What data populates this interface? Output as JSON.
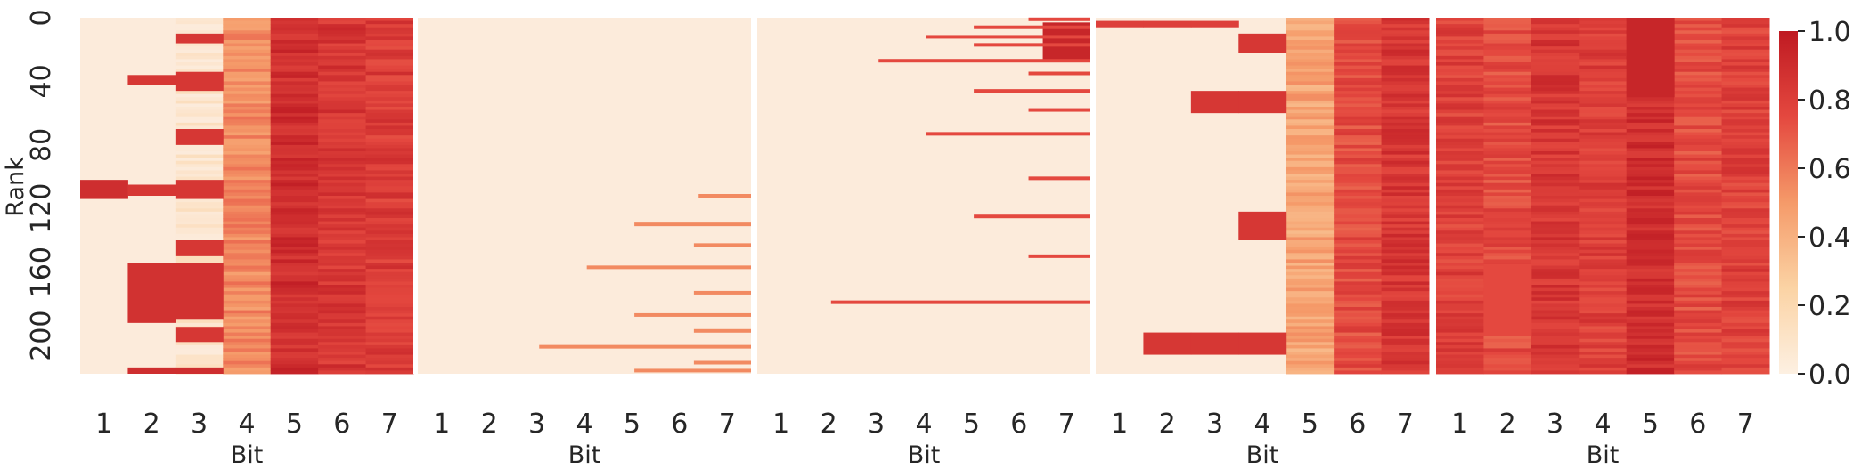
{
  "chart_data": {
    "type": "heatmap",
    "panels": 5,
    "x_categories": [
      "1",
      "2",
      "3",
      "4",
      "5",
      "6",
      "7"
    ],
    "xlabel": "Bit",
    "ylabel": "Rank",
    "y_range": [
      0,
      224
    ],
    "y_ticks": [
      "0",
      "40",
      "80",
      "120",
      "160",
      "200"
    ],
    "colorbar": {
      "range": [
        0.0,
        1.0
      ],
      "ticks": [
        "0.0",
        "0.2",
        "0.4",
        "0.6",
        "0.8",
        "1.0"
      ],
      "colormap": "OrRd",
      "colors": [
        "#fcebdb",
        "#f6b98a",
        "#eb6e4f",
        "#d1353a",
        "#c01d24"
      ]
    },
    "panel_data": [
      {
        "description_bits": "panel 1",
        "column_base": [
          0,
          0,
          0.05,
          0.55,
          0.9,
          0.85,
          0.82
        ],
        "bands": [
          {
            "col": 0,
            "start": 102,
            "end": 114,
            "value": 0.9
          },
          {
            "col": 1,
            "start": 36,
            "end": 42,
            "value": 0.85
          },
          {
            "col": 1,
            "start": 105,
            "end": 112,
            "value": 0.85
          },
          {
            "col": 1,
            "start": 154,
            "end": 192,
            "value": 0.88
          },
          {
            "col": 1,
            "start": 220,
            "end": 224,
            "value": 0.9
          },
          {
            "col": 2,
            "start": 10,
            "end": 16,
            "value": 0.85
          },
          {
            "col": 2,
            "start": 34,
            "end": 46,
            "value": 0.85
          },
          {
            "col": 2,
            "start": 70,
            "end": 80,
            "value": 0.85
          },
          {
            "col": 2,
            "start": 102,
            "end": 114,
            "value": 0.85
          },
          {
            "col": 2,
            "start": 140,
            "end": 150,
            "value": 0.85
          },
          {
            "col": 2,
            "start": 154,
            "end": 190,
            "value": 0.88
          },
          {
            "col": 2,
            "start": 195,
            "end": 204,
            "value": 0.85
          },
          {
            "col": 2,
            "start": 220,
            "end": 224,
            "value": 0.9
          }
        ]
      },
      {
        "description_bits": "panel 2",
        "column_base": [
          0,
          0,
          0,
          0,
          0,
          0,
          0
        ],
        "lines": [
          {
            "row": 112,
            "from_col": 6.4,
            "value": 0.55
          },
          {
            "row": 130,
            "from_col": 5.05,
            "value": 0.55
          },
          {
            "row": 143,
            "from_col": 6.3,
            "value": 0.55
          },
          {
            "row": 157,
            "from_col": 4.05,
            "value": 0.55
          },
          {
            "row": 173,
            "from_col": 6.3,
            "value": 0.55
          },
          {
            "row": 187,
            "from_col": 5.05,
            "value": 0.55
          },
          {
            "row": 197,
            "from_col": 6.3,
            "value": 0.55
          },
          {
            "row": 207,
            "from_col": 3.05,
            "value": 0.55
          },
          {
            "row": 217,
            "from_col": 6.3,
            "value": 0.55
          },
          {
            "row": 222,
            "from_col": 5.05,
            "value": 0.55
          }
        ]
      },
      {
        "description_bits": "panel 3",
        "column_base": [
          0,
          0,
          0,
          0,
          0,
          0,
          0
        ],
        "lines": [
          {
            "row": 1,
            "from_col": 6.2,
            "value": 0.75
          },
          {
            "row": 6,
            "from_col": 5.05,
            "value": 0.75
          },
          {
            "row": 12,
            "from_col": 4.05,
            "value": 0.75
          },
          {
            "row": 17,
            "from_col": 5.05,
            "value": 0.75
          },
          {
            "row": 27,
            "from_col": 3.05,
            "value": 0.75
          },
          {
            "row": 35,
            "from_col": 6.2,
            "value": 0.75
          },
          {
            "row": 46,
            "from_col": 5.05,
            "value": 0.75
          },
          {
            "row": 58,
            "from_col": 6.2,
            "value": 0.75
          },
          {
            "row": 73,
            "from_col": 4.05,
            "value": 0.75
          },
          {
            "row": 101,
            "from_col": 6.2,
            "value": 0.75
          },
          {
            "row": 125,
            "from_col": 5.05,
            "value": 0.75
          },
          {
            "row": 150,
            "from_col": 6.2,
            "value": 0.75
          },
          {
            "row": 179,
            "from_col": 2.05,
            "value": 0.75
          }
        ],
        "blocks": [
          {
            "col": 6,
            "start": 3,
            "end": 28,
            "value": 0.95
          }
        ]
      },
      {
        "description_bits": "panel 4",
        "column_base": [
          0,
          0,
          0,
          0,
          0.45,
          0.75,
          0.85
        ],
        "bands": [
          {
            "col": 0,
            "start": 2,
            "end": 6,
            "value": 0.8
          },
          {
            "col": 1,
            "start": 2,
            "end": 6,
            "value": 0.8
          },
          {
            "col": 2,
            "start": 2,
            "end": 6,
            "value": 0.8
          },
          {
            "col": 1,
            "start": 198,
            "end": 212,
            "value": 0.85
          },
          {
            "col": 2,
            "start": 46,
            "end": 60,
            "value": 0.85
          },
          {
            "col": 2,
            "start": 198,
            "end": 212,
            "value": 0.85
          },
          {
            "col": 3,
            "start": 10,
            "end": 22,
            "value": 0.85
          },
          {
            "col": 3,
            "start": 46,
            "end": 60,
            "value": 0.85
          },
          {
            "col": 3,
            "start": 122,
            "end": 140,
            "value": 0.85
          },
          {
            "col": 3,
            "start": 198,
            "end": 212,
            "value": 0.85
          }
        ]
      },
      {
        "description_bits": "panel 5",
        "column_base": [
          0.8,
          0.75,
          0.85,
          0.8,
          0.9,
          0.75,
          0.8
        ],
        "bands": [
          {
            "col": 4,
            "start": 0,
            "end": 50,
            "value": 0.95
          },
          {
            "col": 1,
            "start": 155,
            "end": 200,
            "value": 0.75
          }
        ]
      }
    ]
  }
}
